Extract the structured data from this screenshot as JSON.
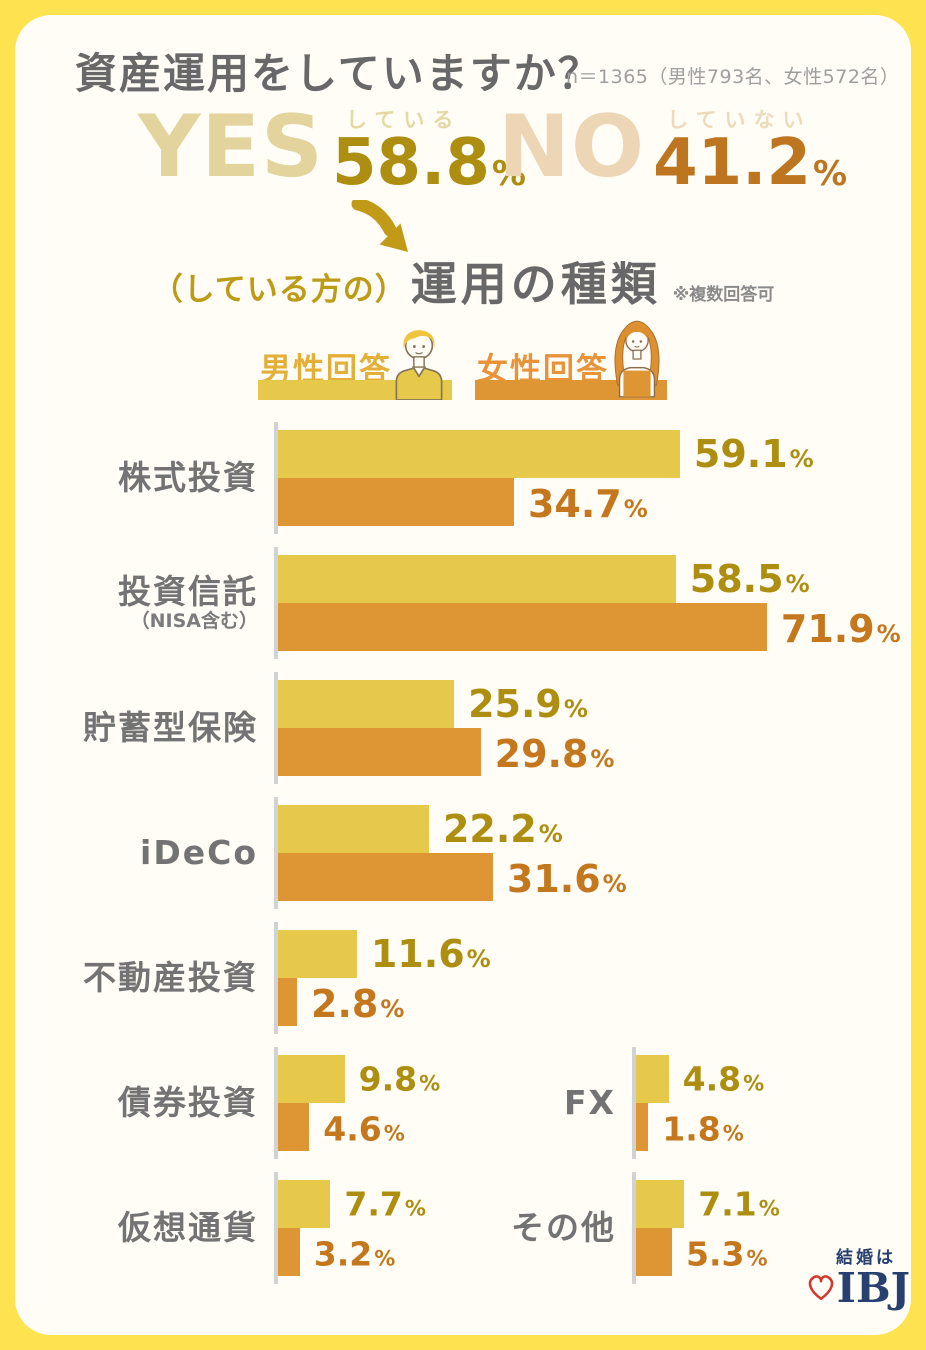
{
  "header": {
    "title": "資産運用をしていますか？",
    "sample_note": "n＝1365（男性793名、女性572名）"
  },
  "summary": {
    "yes": {
      "word": "YES",
      "annotation": "している",
      "value": "58.8",
      "unit": "%"
    },
    "no": {
      "word": "NO",
      "annotation": "していない",
      "value": "41.2",
      "unit": "%"
    }
  },
  "subtitle": {
    "prefix": "（している方の）",
    "main": "運用の種類",
    "note": "※複数回答可"
  },
  "legend": {
    "male": {
      "label": "男性回答",
      "color": "#E6C94B"
    },
    "female": {
      "label": "女性回答",
      "color": "#DE9634"
    }
  },
  "chart_data": {
    "type": "bar",
    "orientation": "horizontal",
    "unit": "%",
    "series": [
      "男性回答",
      "女性回答"
    ],
    "series_colors": [
      "#E6C94B",
      "#DE9634"
    ],
    "xlim": [
      0,
      80
    ],
    "groups": [
      {
        "label": "株式投資",
        "values": [
          59.1,
          34.7
        ]
      },
      {
        "label": "投資信託",
        "sublabel": "（NISA含む）",
        "values": [
          58.5,
          71.9
        ]
      },
      {
        "label": "貯蓄型保険",
        "values": [
          25.9,
          29.8
        ]
      },
      {
        "label": "iDeCo",
        "values": [
          22.2,
          31.6
        ]
      },
      {
        "label": "不動産投資",
        "values": [
          11.6,
          2.8
        ]
      }
    ],
    "mini_groups": [
      {
        "label": "債券投資",
        "values": [
          9.8,
          4.6
        ]
      },
      {
        "label": "FX",
        "values": [
          4.8,
          1.8
        ]
      },
      {
        "label": "仮想通貨",
        "values": [
          7.7,
          3.2
        ]
      },
      {
        "label": "その他",
        "values": [
          7.1,
          5.3
        ]
      }
    ]
  },
  "logo": {
    "top": "結婚は",
    "text": "IBJ"
  },
  "colors": {
    "frame": "#FFE24F",
    "card": "#FFFDF6",
    "title_gray": "#686868",
    "male_bar": "#E6C94B",
    "female_bar": "#DE9634",
    "male_value": "#AD8E10",
    "female_value": "#C4771C",
    "arrow_gold": "#C19A18",
    "logo_navy": "#27406F",
    "heart_red": "#D5372D"
  }
}
